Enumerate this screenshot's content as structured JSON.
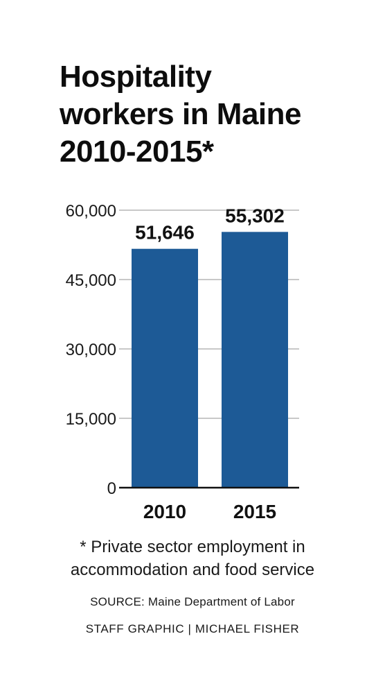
{
  "title_lines": [
    "Hospitality",
    "workers in Maine",
    "2010-2015*"
  ],
  "footnote_lines": [
    "* Private sector employment in",
    "accommodation and food service"
  ],
  "source": "SOURCE: Maine Department of Labor",
  "credit": "STAFF GRAPHIC | MICHAEL FISHER",
  "colors": {
    "bar": "#1d5a96",
    "grid": "#c8c8c8",
    "axis": "#111111"
  },
  "chart_data": {
    "type": "bar",
    "title": "Hospitality workers in Maine 2010-2015*",
    "categories": [
      "2010",
      "2015"
    ],
    "values": [
      51646,
      55302
    ],
    "value_labels": [
      "51,646",
      "55,302"
    ],
    "yticks": [
      0,
      15000,
      30000,
      45000,
      60000
    ],
    "ytick_labels": [
      "0",
      "15,000",
      "30,000",
      "45,000",
      "60,000"
    ],
    "ylim": [
      0,
      60000
    ],
    "xlabel": "",
    "ylabel": "",
    "grid": true,
    "legend": "none"
  }
}
